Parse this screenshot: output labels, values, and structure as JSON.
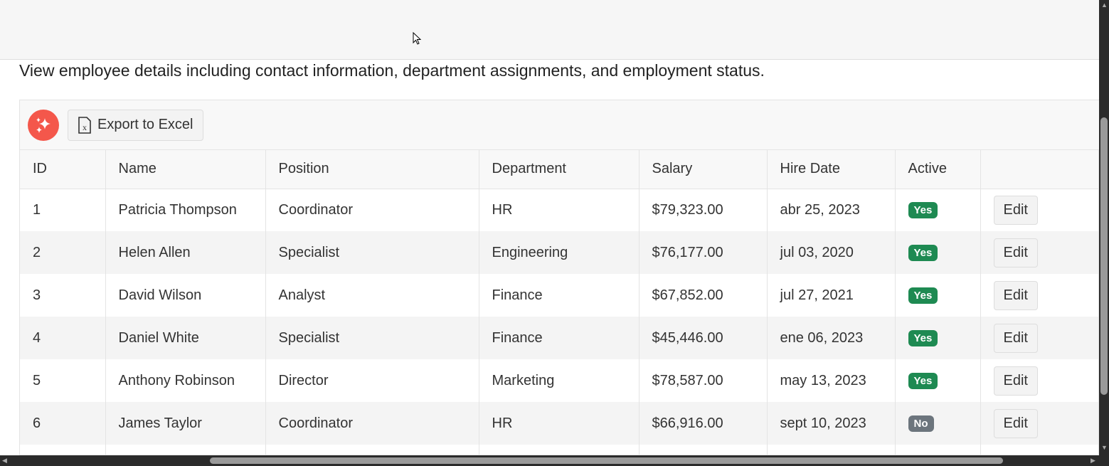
{
  "description": "View employee details including contact information, department assignments, and employment status.",
  "toolbar": {
    "export_label": "Export to Excel",
    "ai_icon": "sparkles-icon",
    "export_icon": "excel-file-icon"
  },
  "columns": [
    "ID",
    "Name",
    "Position",
    "Department",
    "Salary",
    "Hire Date",
    "Active",
    ""
  ],
  "rows": [
    {
      "id": "1",
      "name": "Patricia Thompson",
      "position": "Coordinator",
      "department": "HR",
      "salary": "$79,323.00",
      "hire_date": "abr 25, 2023",
      "active": "Yes"
    },
    {
      "id": "2",
      "name": "Helen Allen",
      "position": "Specialist",
      "department": "Engineering",
      "salary": "$76,177.00",
      "hire_date": "jul 03, 2020",
      "active": "Yes"
    },
    {
      "id": "3",
      "name": "David Wilson",
      "position": "Analyst",
      "department": "Finance",
      "salary": "$67,852.00",
      "hire_date": "jul 27, 2021",
      "active": "Yes"
    },
    {
      "id": "4",
      "name": "Daniel White",
      "position": "Specialist",
      "department": "Finance",
      "salary": "$45,446.00",
      "hire_date": "ene 06, 2023",
      "active": "Yes"
    },
    {
      "id": "5",
      "name": "Anthony Robinson",
      "position": "Director",
      "department": "Marketing",
      "salary": "$78,587.00",
      "hire_date": "may 13, 2023",
      "active": "Yes"
    },
    {
      "id": "6",
      "name": "James Taylor",
      "position": "Coordinator",
      "department": "HR",
      "salary": "$66,916.00",
      "hire_date": "sept 10, 2023",
      "active": "No"
    }
  ],
  "edit_label": "Edit",
  "colors": {
    "yes": "#1e8a52",
    "no": "#6c757d",
    "ai_button": "#f4574b"
  }
}
